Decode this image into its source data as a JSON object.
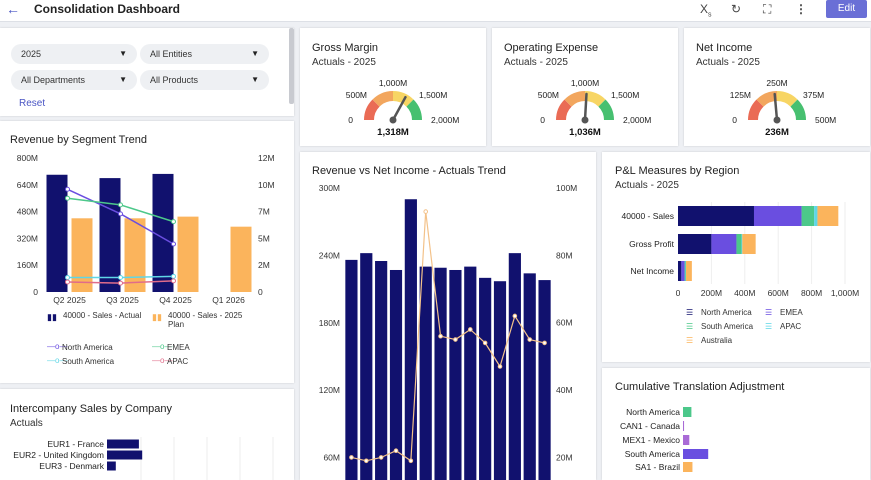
{
  "header": {
    "title": "Consolidation Dashboard",
    "edit_label": "Edit",
    "icons": [
      "back-arrow-icon",
      "subscript-icon",
      "refresh-icon",
      "fullscreen-icon",
      "more-icon"
    ]
  },
  "filters": {
    "year": "2025",
    "entities": "All Entities",
    "departments": "All Departments",
    "products": "All Products",
    "reset": "Reset"
  },
  "gauges": [
    {
      "title": "Gross Margin",
      "subtitle": "Actuals - 2025",
      "min": "0",
      "t1": "500M",
      "t2": "1,000M",
      "t3": "1,500M",
      "max": "2,000M",
      "value_label": "1,318M",
      "value": 1318,
      "range": 2000
    },
    {
      "title": "Operating Expense",
      "subtitle": "Actuals - 2025",
      "min": "0",
      "t1": "500M",
      "t2": "1,000M",
      "t3": "1,500M",
      "max": "2,000M",
      "value_label": "1,036M",
      "value": 1036,
      "range": 2000
    },
    {
      "title": "Net Income",
      "subtitle": "Actuals - 2025",
      "min": "0",
      "t1": "125M",
      "t2": "250M",
      "t3": "375M",
      "max": "500M",
      "value_label": "236M",
      "value": 236,
      "range": 500
    }
  ],
  "segment": {
    "title": "Revenue by Segment Trend",
    "legend": [
      "40000 - Sales - Actual",
      "40000 - Sales - 2025 Plan",
      "North America",
      "EMEA",
      "South America",
      "APAC"
    ]
  },
  "intercompany": {
    "title": "Intercompany Sales by Company",
    "subtitle": "Actuals"
  },
  "trend": {
    "title": "Revenue vs Net Income - Actuals Trend"
  },
  "region": {
    "title": "P&L Measures by Region",
    "subtitle": "Actuals - 2025",
    "legend": [
      "North America",
      "EMEA",
      "South America",
      "APAC",
      "Australia"
    ]
  },
  "cta": {
    "title": "Cumulative Translation Adjustment"
  },
  "colors": {
    "navy": "#11116e",
    "orange": "#fbb45c",
    "purple": "#6a4ee0",
    "green": "#4cc88a",
    "cyan": "#5fd6e6",
    "pink": "#e06c8a",
    "lavender": "#a96ad6",
    "line_orange": "#f3c28a"
  },
  "chart_data": [
    {
      "type": "bar",
      "title": "Revenue by Segment Trend",
      "categories": [
        "Q2 2025",
        "Q3 2025",
        "Q4 2025",
        "Q1 2026"
      ],
      "yticks_left": [
        "0",
        "160M",
        "320M",
        "480M",
        "640M",
        "800M"
      ],
      "yticks_right": [
        "0",
        "2M",
        "5M",
        "7M",
        "10M",
        "12M"
      ],
      "ylim_left": [
        0,
        800
      ],
      "ylim_right": [
        0,
        12
      ],
      "series": [
        {
          "name": "40000 - Sales - Actual",
          "kind": "bar",
          "axis": "left",
          "values": [
            700,
            680,
            705,
            null
          ]
        },
        {
          "name": "40000 - Sales - 2025 Plan",
          "kind": "bar",
          "axis": "left",
          "values": [
            440,
            440,
            450,
            390
          ]
        },
        {
          "name": "North America",
          "kind": "line",
          "axis": "right",
          "values": [
            9.2,
            7.0,
            4.3,
            null
          ]
        },
        {
          "name": "EMEA",
          "kind": "line",
          "axis": "right",
          "values": [
            8.4,
            7.8,
            6.3,
            null
          ]
        },
        {
          "name": "South America",
          "kind": "line",
          "axis": "right",
          "values": [
            1.3,
            1.3,
            1.4,
            null
          ]
        },
        {
          "name": "APAC",
          "kind": "line",
          "axis": "right",
          "values": [
            0.9,
            0.8,
            1.0,
            null
          ]
        }
      ]
    },
    {
      "type": "bar",
      "title": "Revenue vs Net Income - Actuals Trend",
      "yticks_left": [
        "60M",
        "120M",
        "180M",
        "240M",
        "300M"
      ],
      "yticks_right": [
        "20M",
        "40M",
        "60M",
        "80M",
        "100M"
      ],
      "ylim_left": [
        40,
        300
      ],
      "ylim_right": [
        13.3,
        100
      ],
      "series": [
        {
          "name": "Revenue",
          "kind": "bar",
          "axis": "left",
          "values": [
            236,
            242,
            235,
            227,
            290,
            230,
            229,
            227,
            230,
            220,
            217,
            242,
            224,
            218
          ]
        },
        {
          "name": "Net Income",
          "kind": "line",
          "axis": "right",
          "values": [
            20,
            19,
            20,
            22,
            19,
            93,
            56,
            55,
            58,
            54,
            47,
            62,
            55,
            54
          ]
        }
      ]
    },
    {
      "type": "bar",
      "title": "P&L Measures by Region",
      "categories": [
        "40000 - Sales",
        "Gross Profit",
        "Net Income"
      ],
      "xticks": [
        "0",
        "200M",
        "400M",
        "600M",
        "800M",
        "1,000M"
      ],
      "xlim": [
        0,
        1000
      ],
      "series": [
        {
          "name": "North America",
          "values": [
            455,
            200,
            20
          ]
        },
        {
          "name": "EMEA",
          "values": [
            285,
            150,
            20
          ]
        },
        {
          "name": "South America",
          "values": [
            75,
            30,
            5
          ]
        },
        {
          "name": "APAC",
          "values": [
            20,
            5,
            3
          ]
        },
        {
          "name": "Australia",
          "values": [
            125,
            80,
            35
          ]
        }
      ]
    },
    {
      "type": "bar",
      "title": "Intercompany Sales by Company",
      "categories": [
        "EUR1 - France",
        "EUR2 - United Kingdom",
        "EUR3 - Denmark"
      ],
      "values": [
        29,
        32,
        8
      ]
    },
    {
      "type": "bar",
      "title": "Cumulative Translation Adjustment",
      "categories": [
        "North America",
        "CAN1 - Canada",
        "MEX1 - Mexico",
        "South America",
        "SA1 - Brazil"
      ],
      "values": [
        8,
        1,
        6,
        24,
        9
      ],
      "colors": [
        "#4cc88a",
        "#a96ad6",
        "#a96ad6",
        "#6a4ee0",
        "#fbb45c"
      ]
    }
  ]
}
